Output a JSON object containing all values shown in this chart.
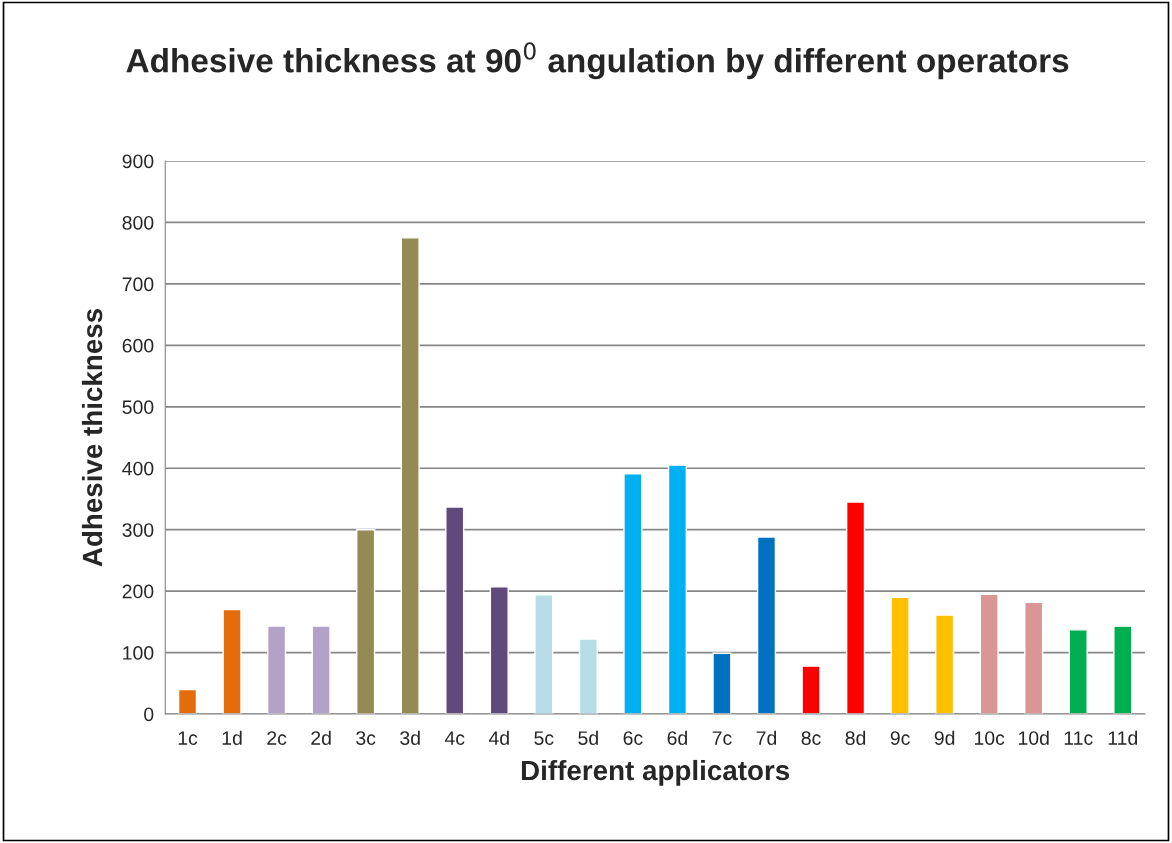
{
  "chart_data": {
    "type": "bar",
    "title": "Adhesive thickness at 90$^{0}$ angulation by different operators",
    "xlabel": "Different applicators",
    "ylabel": "Adhesive thickness",
    "categories": [
      "1c",
      "1d",
      "2c",
      "2d",
      "3c",
      "3d",
      "4c",
      "4d",
      "5c",
      "5d",
      "6c",
      "6d",
      "7c",
      "7d",
      "8c",
      "8d",
      "9c",
      "9d",
      "10c",
      "10d",
      "11c",
      "11d"
    ],
    "values": [
      40,
      170,
      143,
      143,
      300,
      775,
      337,
      207,
      194,
      122,
      391,
      405,
      99,
      288,
      78,
      345,
      190,
      161,
      195,
      182,
      137,
      143
    ],
    "colors": [
      "#e46c0a",
      "#e46c0a",
      "#b3a2c7",
      "#b3a2c7",
      "#948a54",
      "#948a54",
      "#604a7b",
      "#604a7b",
      "#b7dee8",
      "#b7dee8",
      "#00b0f0",
      "#00b0f0",
      "#0070c0",
      "#0070c0",
      "#ff0000",
      "#ff0000",
      "#ffc000",
      "#ffc000",
      "#d99694",
      "#d99694",
      "#00b050",
      "#00b050"
    ],
    "ylim": [
      0,
      900
    ],
    "yticks": [
      0,
      100,
      200,
      300,
      400,
      500,
      600,
      700,
      800,
      900
    ],
    "grid": "y",
    "legend": false
  }
}
